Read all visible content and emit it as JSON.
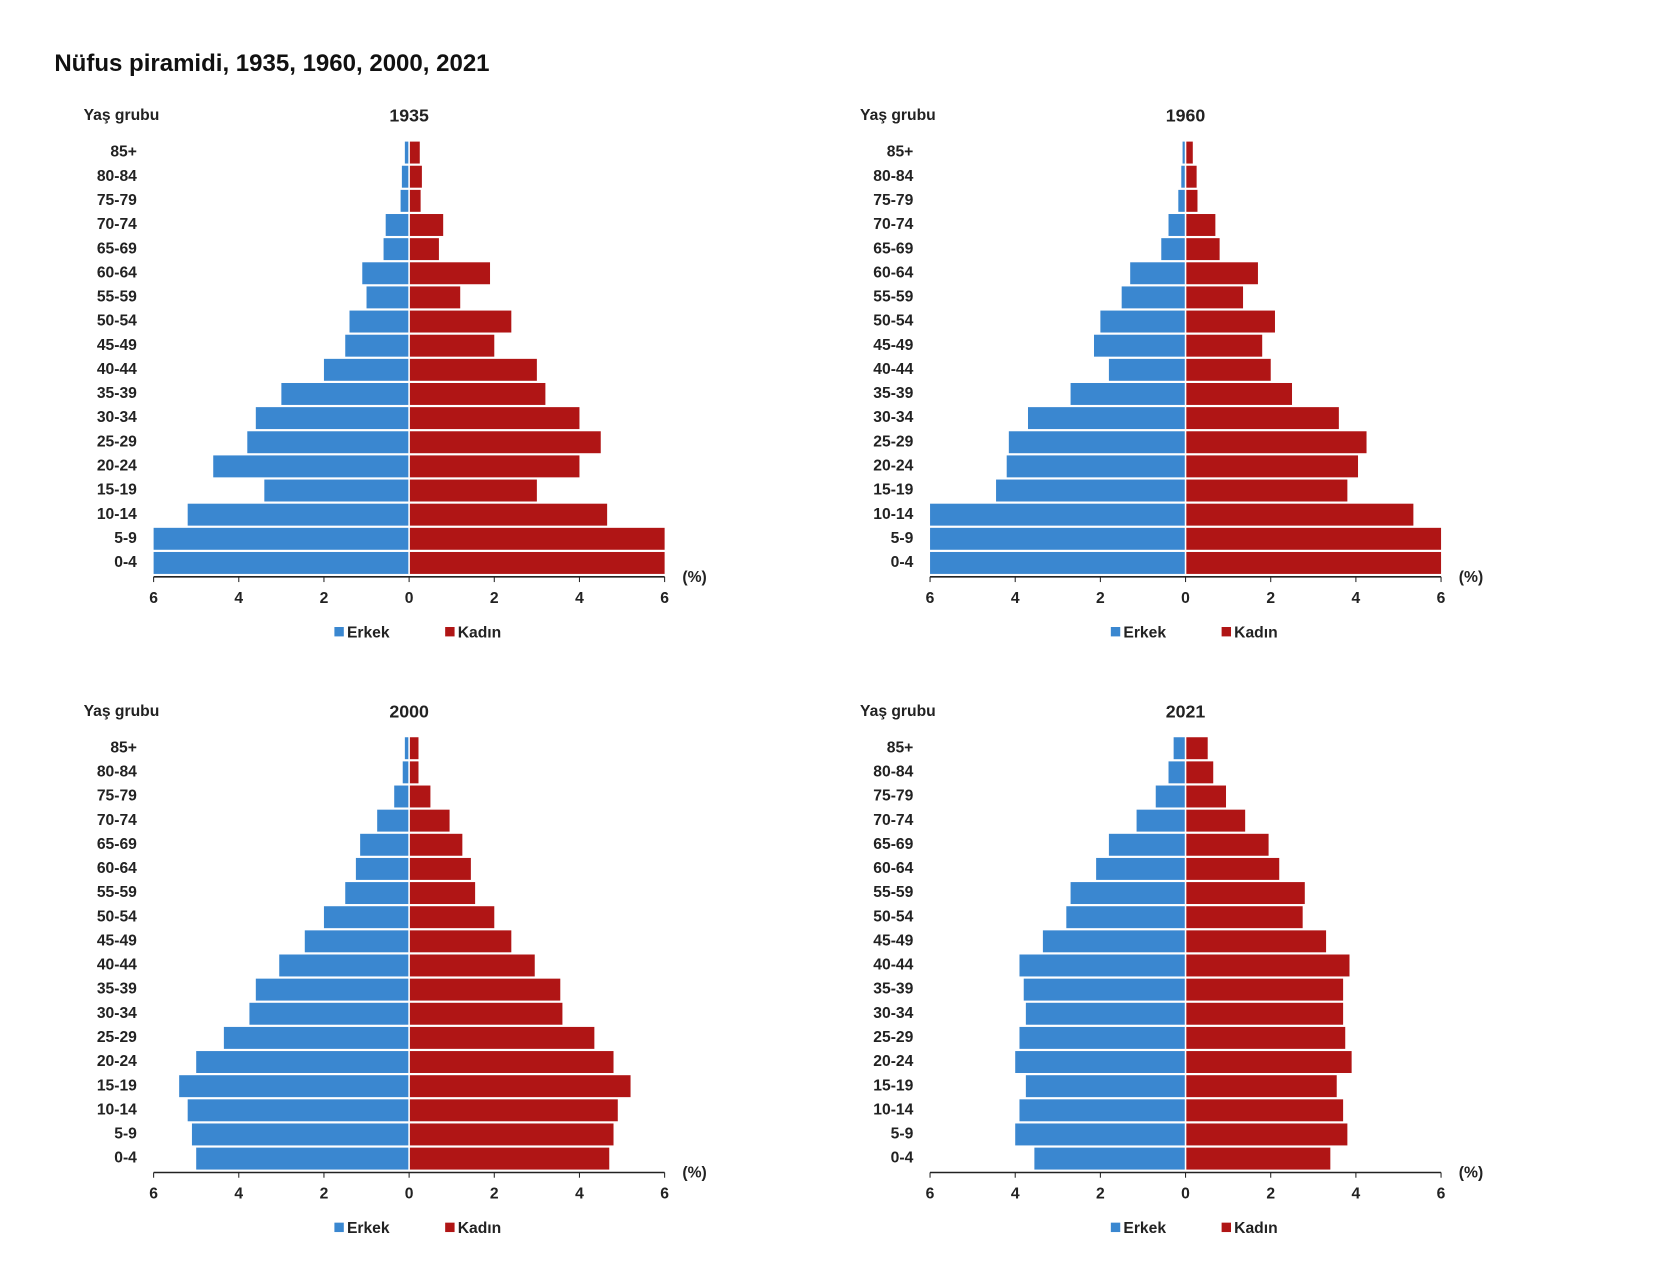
{
  "title": "Nüfus piramidi, 1935, 1960, 2000, 2021",
  "chart_data": [
    {
      "type": "pyramid",
      "title": "1935",
      "y_axis_label": "Yaş grubu",
      "x_axis_unit": "(%)",
      "categories": [
        "0-4",
        "5-9",
        "10-14",
        "15-19",
        "20-24",
        "25-29",
        "30-34",
        "35-39",
        "40-44",
        "45-49",
        "50-54",
        "55-59",
        "60-64",
        "65-69",
        "70-74",
        "75-79",
        "80-84",
        "85+"
      ],
      "series": [
        {
          "name": "Erkek",
          "color": "#3a87d0",
          "values": [
            6.0,
            6.0,
            5.2,
            3.4,
            4.6,
            3.8,
            3.6,
            3.0,
            2.0,
            1.5,
            1.4,
            1.0,
            1.1,
            0.6,
            0.55,
            0.2,
            0.17,
            0.1
          ]
        },
        {
          "name": "Kadın",
          "color": "#b01515",
          "values": [
            6.0,
            6.0,
            4.65,
            3.0,
            4.0,
            4.5,
            4.0,
            3.2,
            3.0,
            2.0,
            2.4,
            1.2,
            1.9,
            0.7,
            0.8,
            0.27,
            0.3,
            0.25
          ]
        }
      ],
      "xlim": [
        -6,
        6
      ],
      "xticks": [
        {
          "value": -6,
          "label": "6"
        },
        {
          "value": -4,
          "label": "4"
        },
        {
          "value": -2,
          "label": "2"
        },
        0,
        2,
        4,
        6
      ]
    },
    {
      "type": "pyramid",
      "title": "1960",
      "y_axis_label": "Yaş grubu",
      "x_axis_unit": "(%)",
      "categories": [
        "0-4",
        "5-9",
        "10-14",
        "15-19",
        "20-24",
        "25-29",
        "30-34",
        "35-39",
        "40-44",
        "45-49",
        "50-54",
        "55-59",
        "60-64",
        "65-69",
        "70-74",
        "75-79",
        "80-84",
        "85+"
      ],
      "series": [
        {
          "name": "Erkek",
          "color": "#3a87d0",
          "values": [
            6.0,
            6.0,
            6.0,
            4.45,
            4.2,
            4.15,
            3.7,
            2.7,
            1.8,
            2.15,
            2.0,
            1.5,
            1.3,
            0.57,
            0.4,
            0.17,
            0.1,
            0.07
          ]
        },
        {
          "name": "Kadın",
          "color": "#b01515",
          "values": [
            6.0,
            6.0,
            5.35,
            3.8,
            4.05,
            4.25,
            3.6,
            2.5,
            2.0,
            1.8,
            2.1,
            1.35,
            1.7,
            0.8,
            0.7,
            0.28,
            0.26,
            0.17
          ]
        }
      ],
      "xlim": [
        -6,
        6
      ],
      "xticks": [
        {
          "value": -6,
          "label": "6"
        },
        {
          "value": -4,
          "label": "4"
        },
        {
          "value": -2,
          "label": "2"
        },
        0,
        2,
        4,
        6
      ]
    },
    {
      "type": "pyramid",
      "title": "2000",
      "y_axis_label": "Yaş grubu",
      "x_axis_unit": "(%)",
      "categories": [
        "0-4",
        "5-9",
        "10-14",
        "15-19",
        "20-24",
        "25-29",
        "30-34",
        "35-39",
        "40-44",
        "45-49",
        "50-54",
        "55-59",
        "60-64",
        "65-69",
        "70-74",
        "75-79",
        "80-84",
        "85+"
      ],
      "series": [
        {
          "name": "Erkek",
          "color": "#3a87d0",
          "values": [
            5.0,
            5.1,
            5.2,
            5.4,
            5.0,
            4.35,
            3.75,
            3.6,
            3.05,
            2.45,
            2.0,
            1.5,
            1.25,
            1.15,
            0.75,
            0.35,
            0.15,
            0.1
          ]
        },
        {
          "name": "Kadın",
          "color": "#b01515",
          "values": [
            4.7,
            4.8,
            4.9,
            5.2,
            4.8,
            4.35,
            3.6,
            3.55,
            2.95,
            2.4,
            2.0,
            1.55,
            1.45,
            1.25,
            0.95,
            0.5,
            0.22,
            0.22
          ]
        }
      ],
      "xlim": [
        -6,
        6
      ],
      "xticks": [
        {
          "value": -6,
          "label": "6"
        },
        {
          "value": -4,
          "label": "4"
        },
        {
          "value": -2,
          "label": "2"
        },
        0,
        2,
        4,
        6
      ]
    },
    {
      "type": "pyramid",
      "title": "2021",
      "y_axis_label": "Yaş grubu",
      "x_axis_unit": "(%)",
      "categories": [
        "0-4",
        "5-9",
        "10-14",
        "15-19",
        "20-24",
        "25-29",
        "30-34",
        "35-39",
        "40-44",
        "45-49",
        "50-54",
        "55-59",
        "60-64",
        "65-69",
        "70-74",
        "75-79",
        "80-84",
        "85+"
      ],
      "series": [
        {
          "name": "Erkek",
          "color": "#3a87d0",
          "values": [
            3.55,
            4.0,
            3.9,
            3.75,
            4.0,
            3.9,
            3.75,
            3.8,
            3.9,
            3.35,
            2.8,
            2.7,
            2.1,
            1.8,
            1.15,
            0.7,
            0.4,
            0.28
          ]
        },
        {
          "name": "Kadın",
          "color": "#b01515",
          "values": [
            3.4,
            3.8,
            3.7,
            3.55,
            3.9,
            3.75,
            3.7,
            3.7,
            3.85,
            3.3,
            2.75,
            2.8,
            2.2,
            1.95,
            1.4,
            0.95,
            0.65,
            0.52
          ]
        }
      ],
      "xlim": [
        -6,
        6
      ],
      "xticks": [
        {
          "value": -6,
          "label": "6"
        },
        {
          "value": -4,
          "label": "4"
        },
        {
          "value": -2,
          "label": "2"
        },
        0,
        2,
        4,
        6
      ]
    }
  ]
}
